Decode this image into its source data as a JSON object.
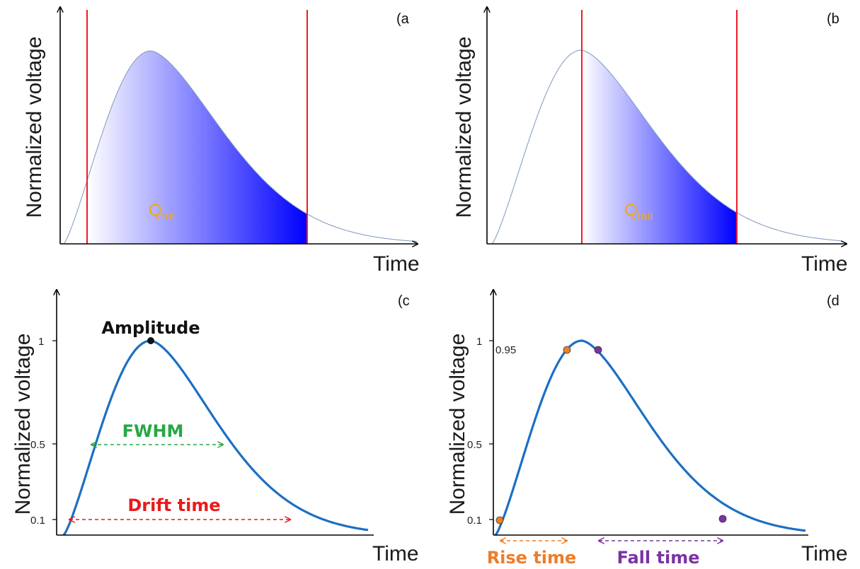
{
  "colors": {
    "fill_light": "#ffffff",
    "fill_dark": "#0000ff",
    "area_outline": "#7f97bf",
    "window_line": "#ee1c25",
    "pulse": "#1c6fc4",
    "fwhm": "#27a844",
    "drift": "#ea1a1a",
    "rise": "#ee7d28",
    "fall": "#7b33a3",
    "qlabel": "#f0a81a",
    "amplitude_point": "#111111"
  },
  "panels": [
    {
      "label": "(a",
      "xlabel": "Time",
      "ylabel": "Normalized voltage",
      "charge_label": {
        "main": "Q",
        "sub": "tot"
      }
    },
    {
      "label": "(b",
      "xlabel": "Time",
      "ylabel": "Normalized voltage",
      "charge_label": {
        "main": "Q",
        "sub": "tail"
      }
    },
    {
      "label": "(c",
      "xlabel": "Time",
      "ylabel": "Normalized voltage",
      "yticks": [
        "1",
        "0.5",
        "0.1"
      ],
      "annotations": {
        "amplitude": "Amplitude",
        "fwhm": "FWHM",
        "drift": "Drift time"
      }
    },
    {
      "label": "(d",
      "xlabel": "Time",
      "ylabel": "Normalized voltage",
      "yticks": [
        "1",
        "0.95",
        "0.5",
        "0.1"
      ],
      "annotations": {
        "rise": "Rise time",
        "fall": "Fall time"
      }
    }
  ]
}
